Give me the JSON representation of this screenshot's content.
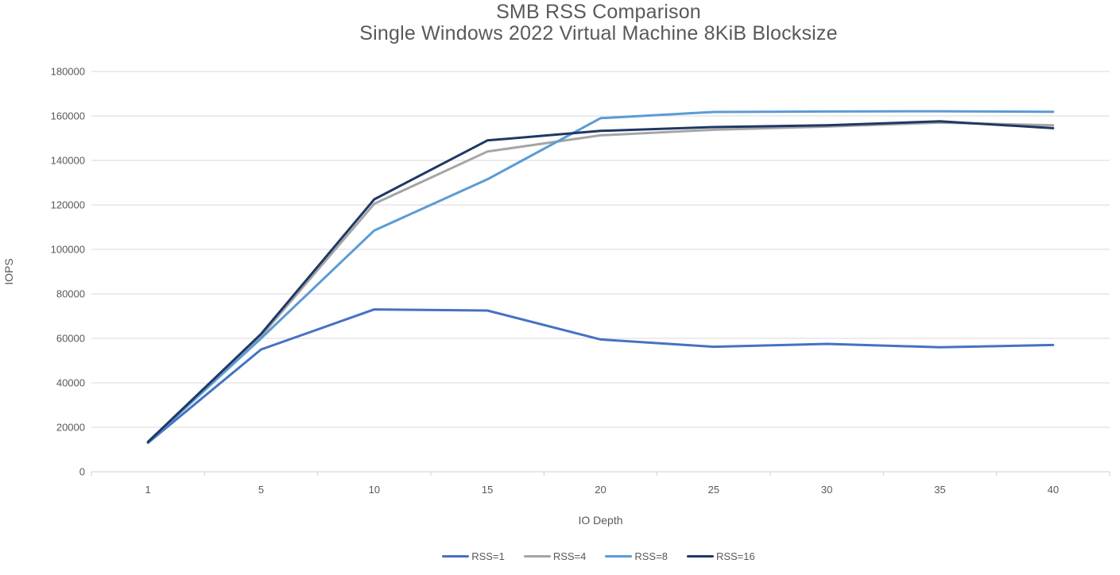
{
  "title": {
    "line1": "SMB RSS Comparison",
    "line2": "Single Windows 2022 Virtual Machine 8KiB Blocksize"
  },
  "chart_data": {
    "type": "line",
    "title": "SMB RSS Comparison",
    "subtitle": "Single Windows 2022 Virtual Machine 8KiB Blocksize",
    "xlabel": "IO Depth",
    "ylabel": "IOPS",
    "categories": [
      "1",
      "5",
      "10",
      "15",
      "20",
      "25",
      "30",
      "35",
      "40"
    ],
    "series": [
      {
        "name": "RSS=1",
        "color": "#4472C4",
        "values": [
          13000,
          55000,
          73000,
          72500,
          59500,
          56200,
          57500,
          56000,
          57000
        ]
      },
      {
        "name": "RSS=4",
        "color": "#A5A5A5",
        "values": [
          13500,
          61000,
          120500,
          144000,
          151300,
          153800,
          155200,
          157000,
          155800
        ]
      },
      {
        "name": "RSS=8",
        "color": "#5B9BD5",
        "values": [
          13200,
          60000,
          108500,
          131500,
          159000,
          161800,
          162000,
          162100,
          161900
        ]
      },
      {
        "name": "RSS=16",
        "color": "#1F3864",
        "values": [
          13400,
          62000,
          122500,
          149000,
          153300,
          155000,
          155800,
          157600,
          154500
        ]
      }
    ],
    "ylim": [
      0,
      180000
    ],
    "ytick_step": 20000,
    "yticks": [
      "0",
      "20000",
      "40000",
      "60000",
      "80000",
      "100000",
      "120000",
      "140000",
      "160000",
      "180000"
    ],
    "grid": true,
    "legend_position": "bottom"
  },
  "colors": {
    "axis_text": "#595959",
    "grid_line": "#D9D9D9",
    "axis_line": "#CFCFCF",
    "background": "#FFFFFF"
  }
}
